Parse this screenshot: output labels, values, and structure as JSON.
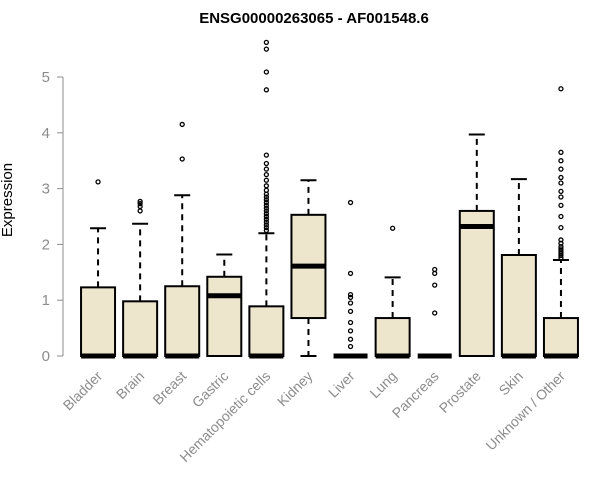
{
  "chart_data": {
    "type": "boxplot",
    "title": "ENSG00000263065 - AF001548.6",
    "xlabel": "",
    "ylabel": "Expression",
    "ylim": [
      0,
      5.6
    ],
    "yticks": [
      0,
      1,
      2,
      3,
      4,
      5
    ],
    "grid": false,
    "colors": {
      "box_fill": "#ede5cc",
      "stroke": "#000000",
      "axis_text": "#8c8c8c"
    },
    "categories": [
      "Bladder",
      "Brain",
      "Breast",
      "Gastric",
      "Hematopoietic cells",
      "Kidney",
      "Liver",
      "Lung",
      "Pancreas",
      "Prostate",
      "Skin",
      "Unknown / Other"
    ],
    "boxes": [
      {
        "category": "Bladder",
        "q1": 0,
        "median": 0,
        "q3": 1.23,
        "whisker_low": 0,
        "whisker_high": 2.29,
        "outliers": [
          3.12
        ]
      },
      {
        "category": "Brain",
        "q1": 0,
        "median": 0,
        "q3": 0.98,
        "whisker_low": 0,
        "whisker_high": 2.37,
        "outliers": [
          2.6,
          2.68,
          2.73,
          2.77
        ]
      },
      {
        "category": "Breast",
        "q1": 0,
        "median": 0,
        "q3": 1.25,
        "whisker_low": 0,
        "whisker_high": 2.88,
        "outliers": [
          3.53,
          4.15
        ]
      },
      {
        "category": "Gastric",
        "q1": 0,
        "median": 1.08,
        "q3": 1.42,
        "whisker_low": 0,
        "whisker_high": 1.82,
        "outliers": []
      },
      {
        "category": "Hematopoietic cells",
        "q1": 0,
        "median": 0,
        "q3": 0.89,
        "whisker_low": 0,
        "whisker_high": 2.2,
        "outliers": [
          2.25,
          2.3,
          2.35,
          2.4,
          2.45,
          2.5,
          2.55,
          2.6,
          2.65,
          2.7,
          2.75,
          2.8,
          2.85,
          2.9,
          2.97,
          3.05,
          3.15,
          3.25,
          3.35,
          3.45,
          3.6,
          4.77,
          5.09,
          5.5,
          5.62
        ]
      },
      {
        "category": "Kidney",
        "q1": 0.68,
        "median": 1.61,
        "q3": 2.53,
        "whisker_low": 0,
        "whisker_high": 3.15,
        "outliers": []
      },
      {
        "category": "Liver",
        "q1": 0,
        "median": 0,
        "q3": 0,
        "whisker_low": 0,
        "whisker_high": 0,
        "outliers": [
          0.17,
          0.3,
          0.45,
          0.6,
          0.8,
          0.95,
          1.05,
          1.1,
          1.48,
          2.75
        ]
      },
      {
        "category": "Lung",
        "q1": 0,
        "median": 0,
        "q3": 0.68,
        "whisker_low": 0,
        "whisker_high": 1.41,
        "outliers": [
          2.29
        ]
      },
      {
        "category": "Pancreas",
        "q1": 0,
        "median": 0,
        "q3": 0,
        "whisker_low": 0,
        "whisker_high": 0,
        "outliers": [
          0.77,
          1.27,
          1.48,
          1.55
        ]
      },
      {
        "category": "Prostate",
        "q1": 0,
        "median": 2.32,
        "q3": 2.6,
        "whisker_low": 0,
        "whisker_high": 3.97,
        "outliers": []
      },
      {
        "category": "Skin",
        "q1": 0,
        "median": 0,
        "q3": 1.81,
        "whisker_low": 0,
        "whisker_high": 3.17,
        "outliers": []
      },
      {
        "category": "Unknown / Other",
        "q1": 0,
        "median": 0,
        "q3": 0.68,
        "whisker_low": 0,
        "whisker_high": 1.72,
        "outliers": [
          1.76,
          1.8,
          1.84,
          1.88,
          1.92,
          1.96,
          2.02,
          2.08,
          2.3,
          2.5,
          2.7,
          2.85,
          2.95,
          3.1,
          3.2,
          3.35,
          3.5,
          3.65,
          4.79
        ]
      }
    ]
  }
}
